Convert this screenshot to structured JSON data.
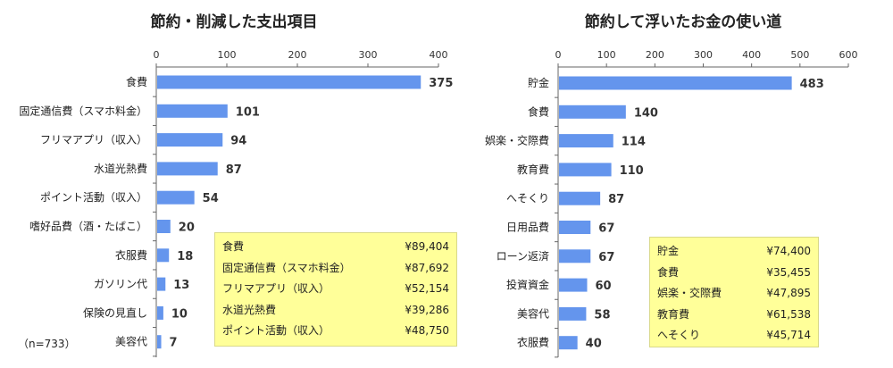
{
  "chart_data": [
    {
      "type": "bar",
      "orientation": "horizontal",
      "title": "節約・削減した支出項目",
      "categories": [
        "食費",
        "固定通信費（スマホ料金）",
        "フリマアプリ（収入）",
        "水道光熱費",
        "ポイント活動（収入）",
        "嗜好品費（酒・たばこ）",
        "衣服費",
        "ガソリン代",
        "保険の見直し",
        "美容代"
      ],
      "values": [
        375,
        101,
        94,
        87,
        54,
        20,
        18,
        13,
        10,
        7
      ],
      "xlim": [
        0,
        400
      ],
      "ticks": [
        0,
        100,
        200,
        300,
        400
      ],
      "note": "（n=733）",
      "table": [
        {
          "label": "食費",
          "amount": "¥89,404"
        },
        {
          "label": "固定通信費（スマホ料金）",
          "amount": "¥87,692"
        },
        {
          "label": "フリマアプリ（収入）",
          "amount": "¥52,154"
        },
        {
          "label": "水道光熱費",
          "amount": "¥39,286"
        },
        {
          "label": "ポイント活動（収入）",
          "amount": "¥48,750"
        }
      ]
    },
    {
      "type": "bar",
      "orientation": "horizontal",
      "title": "節約して浮いたお金の使い道",
      "categories": [
        "貯金",
        "食費",
        "娯楽・交際費",
        "教育費",
        "へそくり",
        "日用品費",
        "ローン返済",
        "投資資金",
        "美容代",
        "衣服費"
      ],
      "values": [
        483,
        140,
        114,
        110,
        87,
        67,
        67,
        60,
        58,
        40
      ],
      "xlim": [
        0,
        600
      ],
      "ticks": [
        0,
        100,
        200,
        300,
        400,
        500,
        600
      ],
      "table": [
        {
          "label": "貯金",
          "amount": "¥74,400"
        },
        {
          "label": "食費",
          "amount": "¥35,455"
        },
        {
          "label": "娯楽・交際費",
          "amount": "¥47,895"
        },
        {
          "label": "教育費",
          "amount": "¥61,538"
        },
        {
          "label": "へそくり",
          "amount": "¥45,714"
        }
      ]
    }
  ],
  "colors": {
    "bar": "#6495ED",
    "table_bg": "#FFFF99"
  }
}
